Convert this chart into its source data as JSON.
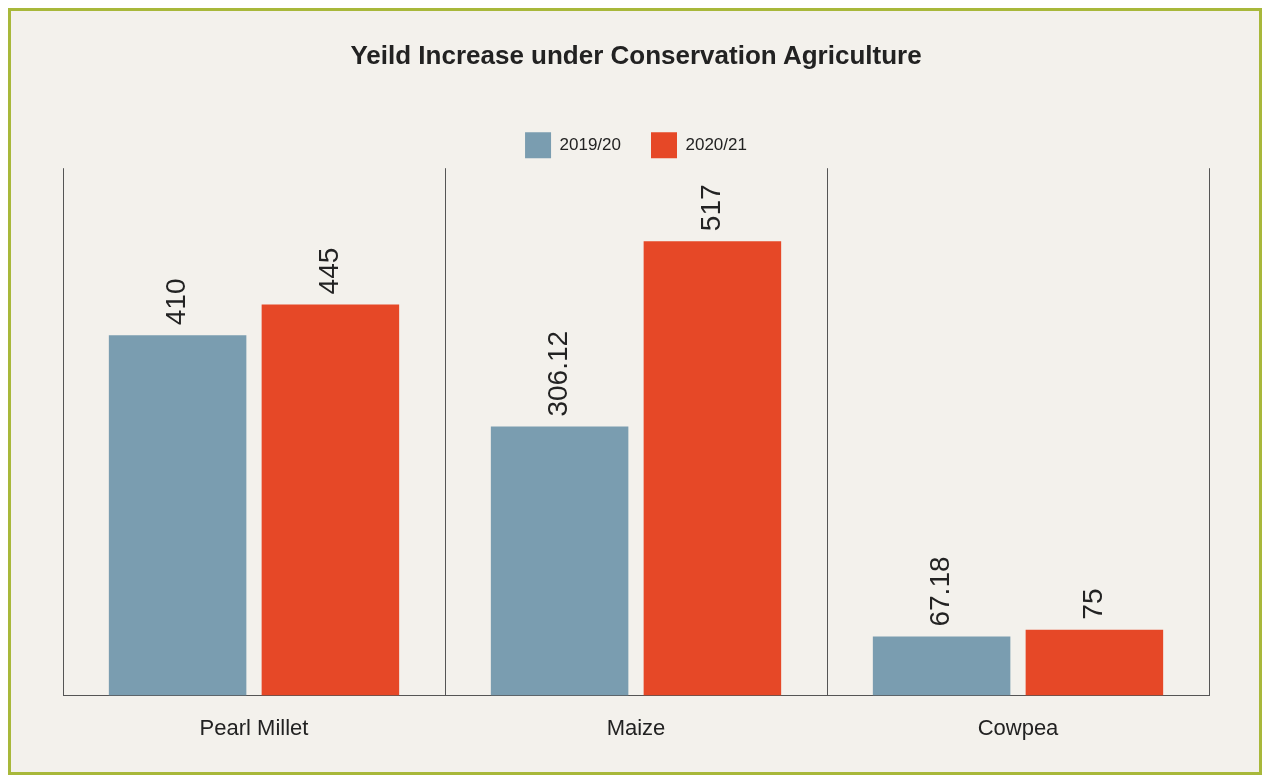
{
  "chart_data": {
    "type": "bar",
    "title": "Yeild Increase under Conservation Agriculture",
    "categories": [
      "Pearl Millet",
      "Maize",
      "Cowpea"
    ],
    "series": [
      {
        "name": "2019/20",
        "color": "#7a9db0",
        "values": [
          410,
          306.12,
          67.18
        ]
      },
      {
        "name": "2020/21",
        "color": "#e64827",
        "values": [
          445,
          517,
          75
        ]
      }
    ],
    "data_labels": true,
    "grid": "x",
    "legend": "top",
    "tick_labels": "x"
  }
}
